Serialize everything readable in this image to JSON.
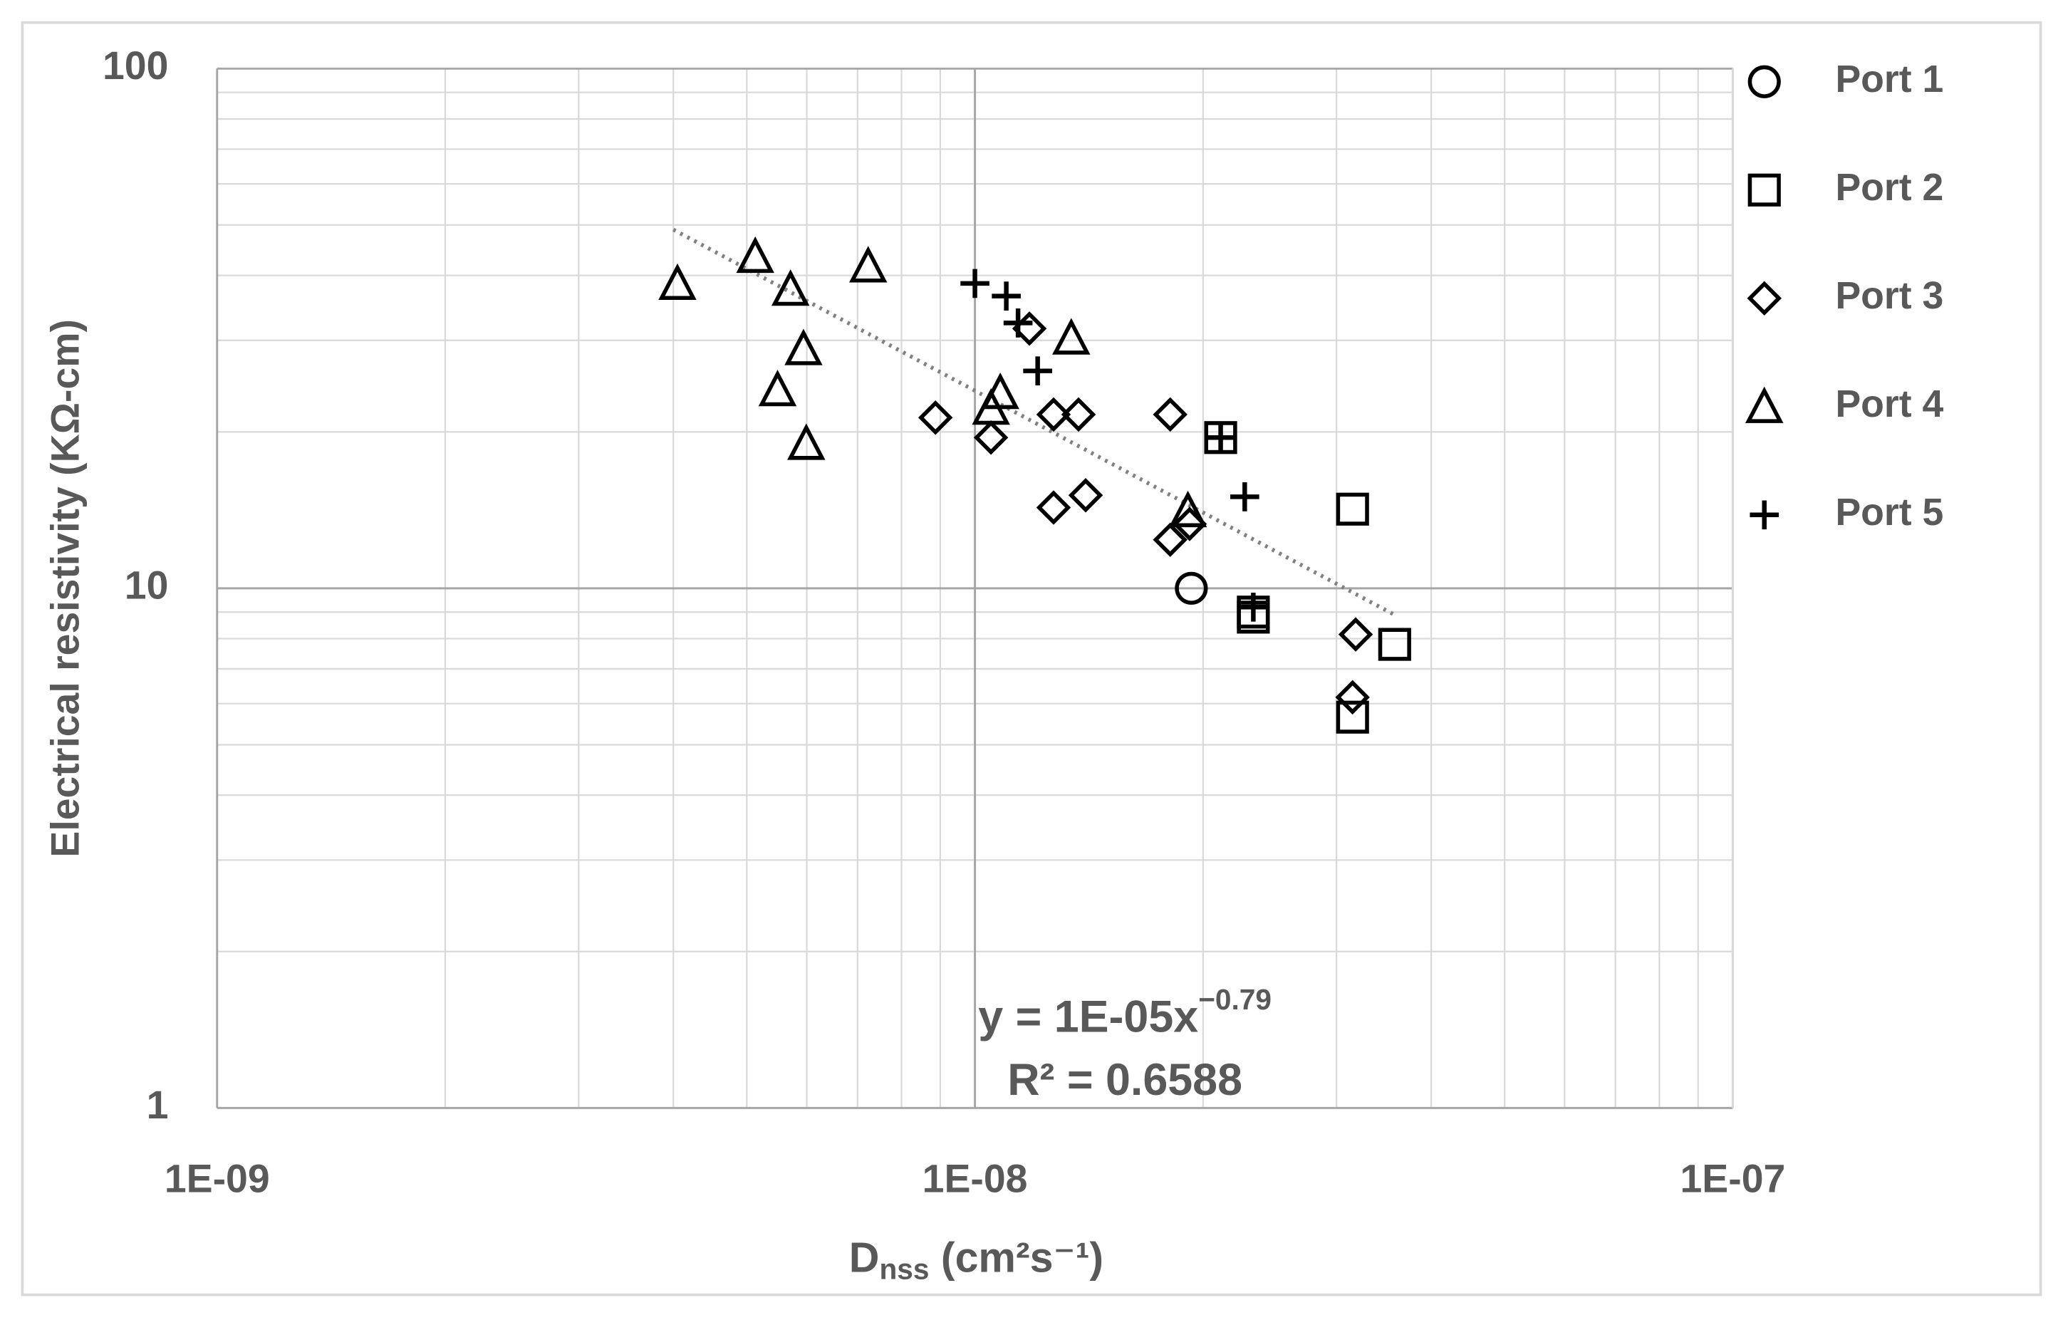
{
  "chart_data": {
    "type": "scatter",
    "x_label": {
      "main": "D",
      "sub": "nss",
      "rest": " (cm²s⁻¹)"
    },
    "y_label": "Electrical resistivity (KΩ-cm)",
    "log_x": true,
    "log_y": true,
    "grid": true,
    "minor_grid": true,
    "legend": "right",
    "xlim": [
      1e-09,
      1e-07
    ],
    "ylim": [
      1,
      100
    ],
    "xticks": [
      {
        "value": 1e-09,
        "label": "1E-09"
      },
      {
        "value": 1e-08,
        "label": "1E-08"
      },
      {
        "value": 1e-07,
        "label": "1E-07"
      }
    ],
    "yticks": [
      1,
      10,
      100
    ],
    "series": [
      {
        "name": "Port 1",
        "color": "#000000",
        "marker": "circle",
        "x": [
          1.93e-08
        ],
        "values": [
          10.0
        ]
      },
      {
        "name": "Port 2",
        "color": "#000000",
        "marker": "square",
        "x": [
          2.11e-08,
          2.33e-08,
          2.33e-08,
          3.15e-08,
          3.58e-08,
          3.15e-08
        ],
        "values": [
          19.5,
          9.0,
          8.8,
          14.2,
          7.8,
          5.65
        ]
      },
      {
        "name": "Port 3",
        "color": "#000000",
        "marker": "diamond",
        "x": [
          8.87e-09,
          1.05e-08,
          1.18e-08,
          1.27e-08,
          1.37e-08,
          1.27e-08,
          1.4e-08,
          1.81e-08,
          1.81e-08,
          1.92e-08,
          3.18e-08,
          3.15e-08
        ],
        "values": [
          21.3,
          19.5,
          31.6,
          21.6,
          21.6,
          14.3,
          15.1,
          21.6,
          12.4,
          13.3,
          8.15,
          6.17
        ]
      },
      {
        "name": "Port 4",
        "color": "#000000",
        "marker": "triangle",
        "x": [
          4.05e-09,
          5.13e-09,
          5.71e-09,
          5.94e-09,
          5.49e-09,
          5.99e-09,
          7.23e-09,
          1.08e-08,
          1.05e-08,
          1.34e-08,
          1.91e-08
        ],
        "values": [
          38.6,
          43.5,
          37.6,
          28.9,
          24.1,
          19.0,
          41.7,
          23.8,
          22.2,
          30.3,
          14.1
        ]
      },
      {
        "name": "Port 5",
        "color": "#000000",
        "marker": "plus",
        "x": [
          1e-08,
          1.1e-08,
          1.14e-08,
          1.21e-08,
          2.11e-08,
          2.27e-08,
          2.33e-08
        ],
        "values": [
          38.6,
          36.5,
          32.4,
          26.2,
          19.5,
          15.0,
          9.2
        ]
      }
    ],
    "trendline": {
      "color": "#808080",
      "x": [
        4e-09,
        3.6e-08
      ],
      "values": [
        49,
        8.85
      ]
    },
    "annotations": {
      "equation": "y = 1E-05x",
      "exponent": "−0.79",
      "r_squared": "R² = 0.6588"
    }
  }
}
